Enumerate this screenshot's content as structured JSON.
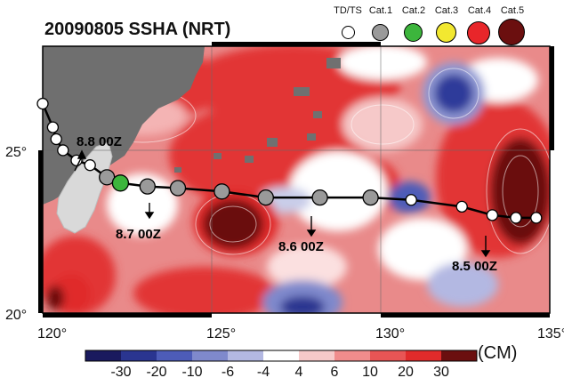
{
  "title": "20090805 SSHA (NRT)",
  "legend": [
    {
      "label": "TD/TS",
      "color": "#ffffff"
    },
    {
      "label": "Cat.1",
      "color": "#9a9a9a"
    },
    {
      "label": "Cat.2",
      "color": "#3cb53c"
    },
    {
      "label": "Cat.3",
      "color": "#f2e830"
    },
    {
      "label": "Cat.4",
      "color": "#e8262a"
    },
    {
      "label": "Cat.5",
      "color": "#6b0f0f"
    }
  ],
  "axes": {
    "lon_ticks": [
      "120°",
      "125°",
      "130°",
      "135°"
    ],
    "lat_ticks": [
      "25°",
      "20°"
    ]
  },
  "annotations": [
    {
      "text": "8.8 00Z"
    },
    {
      "text": "8.7 00Z"
    },
    {
      "text": "8.6 00Z"
    },
    {
      "text": "8.5 00Z"
    }
  ],
  "track": [
    {
      "lon": 120.0,
      "lat": 26.2,
      "cat": "TD/TS"
    },
    {
      "lon": 120.3,
      "lat": 25.5,
      "cat": "TD/TS"
    },
    {
      "lon": 120.4,
      "lat": 25.15,
      "cat": "TD/TS"
    },
    {
      "lon": 120.6,
      "lat": 24.82,
      "cat": "TD/TS"
    },
    {
      "lon": 121.0,
      "lat": 24.52,
      "cat": "TD/TS"
    },
    {
      "lon": 121.4,
      "lat": 24.38,
      "cat": "TD/TS"
    },
    {
      "lon": 121.9,
      "lat": 24.02,
      "cat": "Cat.1"
    },
    {
      "lon": 122.3,
      "lat": 23.85,
      "cat": "Cat.2"
    },
    {
      "lon": 123.1,
      "lat": 23.75,
      "cat": "Cat.1"
    },
    {
      "lon": 124.0,
      "lat": 23.7,
      "cat": "Cat.1"
    },
    {
      "lon": 125.3,
      "lat": 23.6,
      "cat": "Cat.1"
    },
    {
      "lon": 126.6,
      "lat": 23.42,
      "cat": "Cat.1"
    },
    {
      "lon": 128.2,
      "lat": 23.42,
      "cat": "Cat.1"
    },
    {
      "lon": 129.7,
      "lat": 23.42,
      "cat": "Cat.1"
    },
    {
      "lon": 130.9,
      "lat": 23.35,
      "cat": "TD/TS"
    },
    {
      "lon": 132.4,
      "lat": 23.15,
      "cat": "TD/TS"
    },
    {
      "lon": 133.3,
      "lat": 22.9,
      "cat": "TD/TS"
    },
    {
      "lon": 134.0,
      "lat": 22.82,
      "cat": "TD/TS"
    },
    {
      "lon": 134.6,
      "lat": 22.82,
      "cat": "TD/TS"
    }
  ],
  "colorbar": {
    "unit": "(CM)",
    "labels": [
      "-30",
      "-20",
      "-10",
      "-6",
      "-4",
      "4",
      "6",
      "10",
      "20",
      "30"
    ],
    "colors": [
      "#1a1a5e",
      "#2a3590",
      "#4d5cb8",
      "#7f89cc",
      "#b3b8e2",
      "#ffffff",
      "#f6c9c9",
      "#f08c8c",
      "#e85555",
      "#e02b2b",
      "#6b0f0f"
    ]
  }
}
